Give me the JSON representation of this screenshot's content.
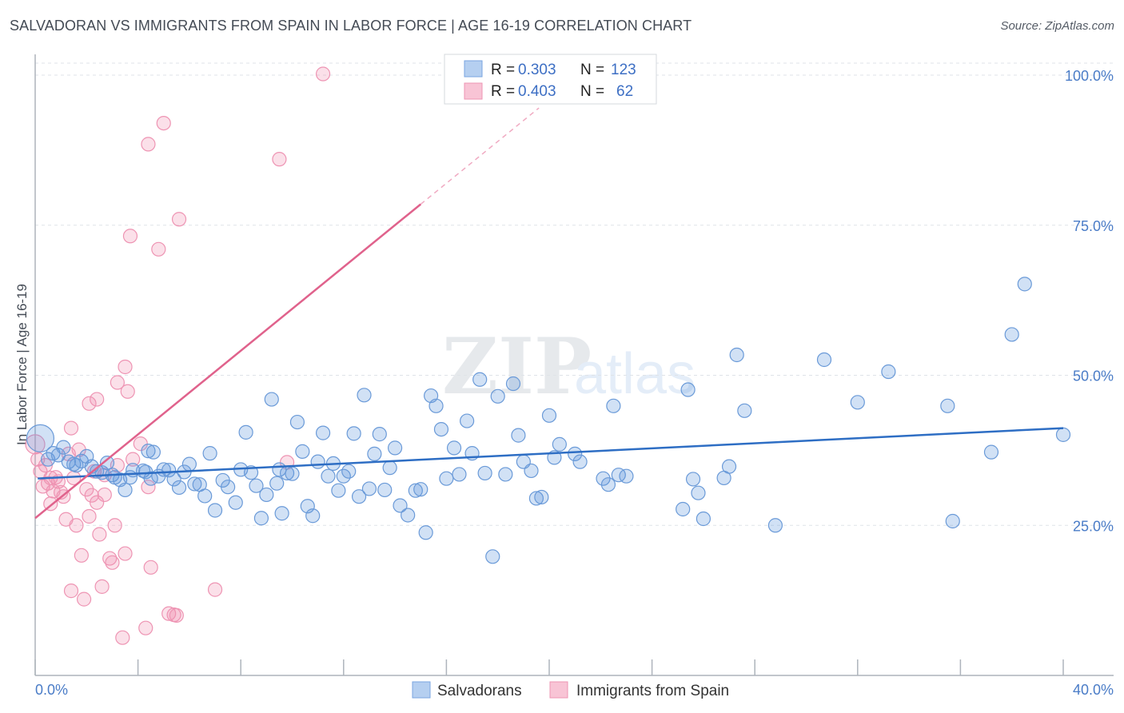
{
  "header": {
    "title": "SALVADORAN VS IMMIGRANTS FROM SPAIN IN LABOR FORCE | AGE 16-19 CORRELATION CHART",
    "source": "Source: ZipAtlas.com"
  },
  "watermark": {
    "zip": "ZIP",
    "atlas": "atlas"
  },
  "legend": {
    "rows": [
      {
        "r_label": "R = ",
        "r_value": "0.303",
        "n_label": "N = ",
        "n_value": "123"
      },
      {
        "r_label": "R = ",
        "r_value": "0.403",
        "n_label": "N = ",
        "n_value": "62"
      }
    ]
  },
  "bottom_legend": {
    "items": [
      "Salvadorans",
      "Immigrants from Spain"
    ]
  },
  "chart_data": {
    "type": "scatter",
    "title": "SALVADORAN VS IMMIGRANTS FROM SPAIN IN LABOR FORCE | AGE 16-19 CORRELATION CHART",
    "xlabel": "",
    "ylabel": "In Labor Force | Age 16-19",
    "xlim": [
      0,
      40
    ],
    "ylim": [
      0,
      102
    ],
    "x_ticks": [
      "0.0%",
      "40.0%"
    ],
    "y_ticks": [
      "25.0%",
      "50.0%",
      "75.0%",
      "100.0%"
    ],
    "y_tick_values": [
      25,
      50,
      75,
      100
    ],
    "grid": true,
    "colors": {
      "Salvadorans": "#5b93da",
      "Immigrants from Spain": "#f08fb0",
      "blue_line": "#2e6ec4",
      "pink_line": "#e0628c"
    },
    "series": [
      {
        "name": "Salvadorans",
        "trend": {
          "x1": 0.1,
          "y1": 32.8,
          "x2": 40,
          "y2": 41.2
        },
        "points": [
          [
            0.2,
            39.5
          ],
          [
            0.5,
            36
          ],
          [
            0.7,
            37
          ],
          [
            0.9,
            36.7
          ],
          [
            1.1,
            38
          ],
          [
            1.3,
            35.6
          ],
          [
            1.5,
            35.2
          ],
          [
            1.6,
            35
          ],
          [
            1.8,
            35.7
          ],
          [
            2.0,
            36.5
          ],
          [
            2.2,
            34.8
          ],
          [
            2.4,
            34
          ],
          [
            2.6,
            33.8
          ],
          [
            2.8,
            35.4
          ],
          [
            3.0,
            33.4
          ],
          [
            3.1,
            33
          ],
          [
            3.3,
            32.6
          ],
          [
            3.5,
            30.9
          ],
          [
            3.7,
            33
          ],
          [
            3.8,
            34.2
          ],
          [
            4.2,
            34.1
          ],
          [
            4.3,
            33.9
          ],
          [
            4.4,
            37.4
          ],
          [
            4.5,
            32.8
          ],
          [
            4.6,
            37.2
          ],
          [
            4.8,
            33.2
          ],
          [
            5.0,
            34.3
          ],
          [
            5.2,
            34.2
          ],
          [
            5.4,
            32.7
          ],
          [
            5.6,
            31.3
          ],
          [
            5.8,
            33.9
          ],
          [
            6.0,
            35.2
          ],
          [
            6.2,
            31.9
          ],
          [
            6.4,
            31.8
          ],
          [
            6.6,
            29.9
          ],
          [
            6.8,
            37
          ],
          [
            7.0,
            27.5
          ],
          [
            7.3,
            32.5
          ],
          [
            7.5,
            31.4
          ],
          [
            7.8,
            28.8
          ],
          [
            8.0,
            34.3
          ],
          [
            8.2,
            40.5
          ],
          [
            8.4,
            33.8
          ],
          [
            8.6,
            31.6
          ],
          [
            8.8,
            26.2
          ],
          [
            9.0,
            30.1
          ],
          [
            9.2,
            46
          ],
          [
            9.4,
            32
          ],
          [
            9.5,
            34.3
          ],
          [
            9.6,
            27
          ],
          [
            9.8,
            33.7
          ],
          [
            10.0,
            33.6
          ],
          [
            10.2,
            42.2
          ],
          [
            10.4,
            37.3
          ],
          [
            10.6,
            28.2
          ],
          [
            10.8,
            26.6
          ],
          [
            11.0,
            35.6
          ],
          [
            11.2,
            40.4
          ],
          [
            11.4,
            33.2
          ],
          [
            11.6,
            35.3
          ],
          [
            11.8,
            30.8
          ],
          [
            12.0,
            33.2
          ],
          [
            12.2,
            34
          ],
          [
            12.4,
            40.3
          ],
          [
            12.6,
            29.8
          ],
          [
            12.8,
            46.7
          ],
          [
            13.0,
            31.1
          ],
          [
            13.2,
            36.9
          ],
          [
            13.4,
            40.2
          ],
          [
            13.6,
            30.9
          ],
          [
            13.8,
            34.6
          ],
          [
            14.0,
            37.9
          ],
          [
            14.2,
            28.3
          ],
          [
            14.5,
            26.7
          ],
          [
            14.8,
            30.8
          ],
          [
            15.0,
            31
          ],
          [
            15.2,
            23.8
          ],
          [
            15.4,
            46.6
          ],
          [
            15.6,
            44.9
          ],
          [
            15.8,
            41
          ],
          [
            16.0,
            32.8
          ],
          [
            16.3,
            37.9
          ],
          [
            16.5,
            33.5
          ],
          [
            16.8,
            42.4
          ],
          [
            17.0,
            37
          ],
          [
            17.3,
            49.3
          ],
          [
            17.5,
            33.7
          ],
          [
            17.8,
            19.8
          ],
          [
            18.0,
            46.5
          ],
          [
            18.3,
            33.5
          ],
          [
            18.6,
            48.6
          ],
          [
            18.8,
            40
          ],
          [
            19.0,
            35.6
          ],
          [
            19.3,
            34.1
          ],
          [
            19.5,
            29.5
          ],
          [
            19.7,
            29.7
          ],
          [
            20.0,
            43.3
          ],
          [
            20.2,
            36.3
          ],
          [
            20.4,
            38.5
          ],
          [
            21.0,
            36.9
          ],
          [
            21.2,
            35.6
          ],
          [
            22.1,
            32.8
          ],
          [
            22.3,
            31.8
          ],
          [
            22.5,
            44.9
          ],
          [
            22.7,
            33.4
          ],
          [
            23.0,
            33.2
          ],
          [
            25.2,
            27.7
          ],
          [
            25.4,
            47.6
          ],
          [
            25.6,
            32.7
          ],
          [
            25.8,
            30.4
          ],
          [
            26.0,
            26.1
          ],
          [
            26.8,
            32.9
          ],
          [
            27.0,
            34.8
          ],
          [
            27.3,
            53.4
          ],
          [
            27.6,
            44.1
          ],
          [
            28.8,
            25
          ],
          [
            30.7,
            52.6
          ],
          [
            32.0,
            45.5
          ],
          [
            33.2,
            50.6
          ],
          [
            35.5,
            44.9
          ],
          [
            35.7,
            25.7
          ],
          [
            37.2,
            37.2
          ],
          [
            38.0,
            56.8
          ],
          [
            38.5,
            65.2
          ],
          [
            40.0,
            40.1
          ]
        ]
      },
      {
        "name": "Immigrants from Spain",
        "trend": {
          "x1": 0.0,
          "y1": 26.2,
          "x2": 15,
          "y2": 78.5,
          "dash_to_x": 19.6
        },
        "points": [
          [
            0.0,
            38.5
          ],
          [
            0.1,
            36
          ],
          [
            0.2,
            34
          ],
          [
            0.3,
            31.5
          ],
          [
            0.4,
            35
          ],
          [
            0.5,
            32
          ],
          [
            0.6,
            32.9
          ],
          [
            0.6,
            28.6
          ],
          [
            0.7,
            30.7
          ],
          [
            0.8,
            33
          ],
          [
            0.9,
            32.3
          ],
          [
            1.0,
            30.5
          ],
          [
            1.1,
            29.8
          ],
          [
            1.2,
            26
          ],
          [
            1.3,
            36.9
          ],
          [
            1.4,
            41.2
          ],
          [
            1.4,
            14.1
          ],
          [
            1.5,
            32.9
          ],
          [
            1.6,
            25
          ],
          [
            1.7,
            37.6
          ],
          [
            1.8,
            20
          ],
          [
            1.9,
            12.7
          ],
          [
            2.0,
            31
          ],
          [
            2.1,
            26.5
          ],
          [
            2.1,
            45.3
          ],
          [
            2.2,
            30
          ],
          [
            2.3,
            34
          ],
          [
            2.4,
            46
          ],
          [
            2.4,
            28.8
          ],
          [
            2.5,
            23.5
          ],
          [
            2.6,
            14.8
          ],
          [
            2.7,
            33.4
          ],
          [
            2.7,
            30.1
          ],
          [
            2.9,
            19.5
          ],
          [
            3.0,
            18.8
          ],
          [
            3.1,
            25
          ],
          [
            3.2,
            48.8
          ],
          [
            3.2,
            35
          ],
          [
            3.4,
            6.3
          ],
          [
            3.5,
            20.3
          ],
          [
            3.5,
            51.4
          ],
          [
            3.6,
            47.3
          ],
          [
            3.7,
            73.2
          ],
          [
            3.8,
            36
          ],
          [
            4.1,
            38.6
          ],
          [
            4.3,
            7.9
          ],
          [
            4.4,
            31.4
          ],
          [
            4.5,
            18
          ],
          [
            4.4,
            88.5
          ],
          [
            4.8,
            71
          ],
          [
            5.0,
            92
          ],
          [
            5.2,
            10.3
          ],
          [
            5.4,
            10.1
          ],
          [
            5.5,
            10
          ],
          [
            5.6,
            76
          ],
          [
            7.0,
            14.3
          ],
          [
            9.5,
            86
          ],
          [
            9.8,
            35.5
          ],
          [
            11.2,
            100.2
          ]
        ]
      }
    ]
  }
}
